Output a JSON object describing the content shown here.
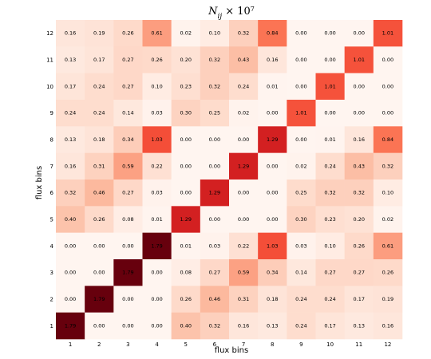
{
  "chart_data": {
    "type": "heatmap",
    "title": "N_ij × 10^7",
    "title_main": "N",
    "title_sub": "ij",
    "title_times": "× 10",
    "title_exp": "7",
    "xlabel": "flux bins",
    "ylabel": "flux bins",
    "x_categories": [
      "1",
      "2",
      "3",
      "4",
      "5",
      "6",
      "7",
      "8",
      "9",
      "10",
      "11",
      "12"
    ],
    "y_categories": [
      "1",
      "2",
      "3",
      "4",
      "5",
      "6",
      "7",
      "8",
      "9",
      "10",
      "11",
      "12"
    ],
    "colormap": "Reds",
    "vmin": 0.0,
    "vmax": 1.79,
    "rows": [
      {
        "y": "12",
        "values": [
          0.16,
          0.19,
          0.26,
          0.61,
          0.02,
          0.1,
          0.32,
          0.84,
          0.0,
          0.0,
          0.0,
          1.01
        ]
      },
      {
        "y": "11",
        "values": [
          0.13,
          0.17,
          0.27,
          0.26,
          0.2,
          0.32,
          0.43,
          0.16,
          0.0,
          0.0,
          1.01,
          0.0
        ]
      },
      {
        "y": "10",
        "values": [
          0.17,
          0.24,
          0.27,
          0.1,
          0.23,
          0.32,
          0.24,
          0.01,
          0.0,
          1.01,
          0.0,
          0.0
        ]
      },
      {
        "y": "9",
        "values": [
          0.24,
          0.24,
          0.14,
          0.03,
          0.3,
          0.25,
          0.02,
          0.0,
          1.01,
          0.0,
          0.0,
          0.0
        ]
      },
      {
        "y": "8",
        "values": [
          0.13,
          0.18,
          0.34,
          1.03,
          0.0,
          0.0,
          0.0,
          1.29,
          0.0,
          0.01,
          0.16,
          0.84
        ]
      },
      {
        "y": "7",
        "values": [
          0.16,
          0.31,
          0.59,
          0.22,
          0.0,
          0.0,
          1.29,
          0.0,
          0.02,
          0.24,
          0.43,
          0.32
        ]
      },
      {
        "y": "6",
        "values": [
          0.32,
          0.46,
          0.27,
          0.03,
          0.0,
          1.29,
          0.0,
          0.0,
          0.25,
          0.32,
          0.32,
          0.1
        ]
      },
      {
        "y": "5",
        "values": [
          0.4,
          0.26,
          0.08,
          0.01,
          1.29,
          0.0,
          0.0,
          0.0,
          0.3,
          0.23,
          0.2,
          0.02
        ]
      },
      {
        "y": "4",
        "values": [
          0.0,
          0.0,
          0.0,
          1.79,
          0.01,
          0.03,
          0.22,
          1.03,
          0.03,
          0.1,
          0.26,
          0.61
        ]
      },
      {
        "y": "3",
        "values": [
          0.0,
          0.0,
          1.79,
          0.0,
          0.08,
          0.27,
          0.59,
          0.34,
          0.14,
          0.27,
          0.27,
          0.26
        ]
      },
      {
        "y": "2",
        "values": [
          0.0,
          1.79,
          0.0,
          0.0,
          0.26,
          0.46,
          0.31,
          0.18,
          0.24,
          0.24,
          0.17,
          0.19
        ]
      },
      {
        "y": "1",
        "values": [
          1.79,
          0.0,
          0.0,
          0.0,
          0.4,
          0.32,
          0.16,
          0.13,
          0.24,
          0.17,
          0.13,
          0.16
        ]
      }
    ]
  }
}
